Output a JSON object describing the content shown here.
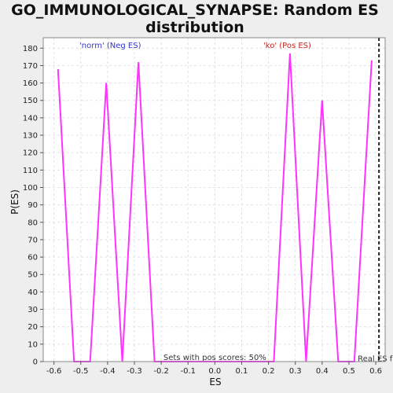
{
  "chart_data": {
    "type": "line",
    "title_lines": [
      "GO_IMMUNOLOGICAL_SYNAPSE: Random ES",
      "distribution"
    ],
    "xlabel": "ES",
    "ylabel": "P(ES)",
    "xlim": [
      -0.64,
      0.635
    ],
    "ylim": [
      0,
      186
    ],
    "x_ticks": [
      -0.6,
      -0.5,
      -0.4,
      -0.3,
      -0.2,
      -0.1,
      0.0,
      0.1,
      0.2,
      0.3,
      0.4,
      0.5,
      0.6
    ],
    "x_tick_labels": [
      "-0.6",
      "-0.5",
      "-0.4",
      "-0.3",
      "-0.2",
      "-0.1",
      "0.0",
      "0.1",
      "0.2",
      "0.3",
      "0.4",
      "0.5",
      "0.6"
    ],
    "y_ticks": [
      0,
      10,
      20,
      30,
      40,
      50,
      60,
      70,
      80,
      90,
      100,
      110,
      120,
      130,
      140,
      150,
      160,
      170,
      180
    ],
    "y_tick_labels": [
      "0",
      "10",
      "20",
      "30",
      "40",
      "50",
      "60",
      "70",
      "80",
      "90",
      "100",
      "110",
      "120",
      "130",
      "140",
      "150",
      "160",
      "170",
      "180"
    ],
    "grid": true,
    "series": [
      {
        "color": "#ff33ff",
        "x": [
          -0.585,
          -0.525,
          -0.465,
          -0.405,
          -0.345,
          -0.285,
          -0.225,
          -0.165,
          -0.105,
          -0.045,
          0.015,
          0.075,
          0.135,
          0.195,
          0.22,
          0.28,
          0.34,
          0.4,
          0.46,
          0.52,
          0.585
        ],
        "y": [
          168,
          0,
          0,
          160,
          0,
          172,
          0,
          0,
          0,
          0,
          0,
          0,
          0,
          0,
          0,
          177,
          0,
          150,
          0,
          0,
          173
        ]
      }
    ],
    "annotations": {
      "neg_label": {
        "text": "'norm' (Neg ES)",
        "color": "#3333cc",
        "x": -0.39
      },
      "pos_label": {
        "text": "'ko' (Pos ES)",
        "color": "#cc2222",
        "x": 0.27
      },
      "sets_text": "Sets with pos scores: 50%",
      "real_es_text": "Real ES f",
      "real_es_x": 0.612
    }
  }
}
